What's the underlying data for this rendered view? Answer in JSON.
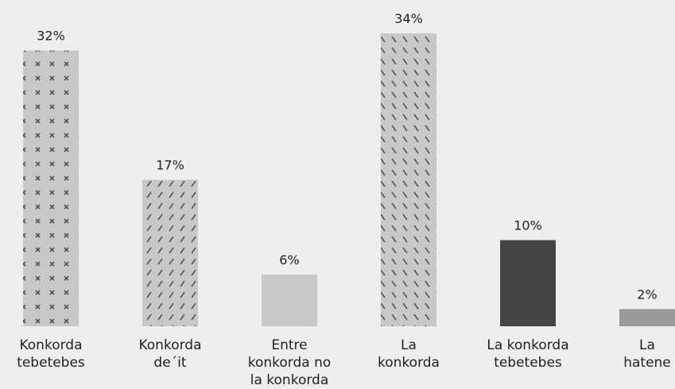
{
  "chart_data": {
    "type": "bar",
    "categories": [
      "Konkorda\ntebetebes",
      "Konkorda\nde´it",
      "Entre\nkonkorda no\nla konkorda",
      "La\nkonkorda",
      "La konkorda\ntebetebes",
      "La\nhatene"
    ],
    "values": [
      32,
      17,
      6,
      34,
      10,
      2
    ],
    "value_labels": [
      "32%",
      "17%",
      "6%",
      "34%",
      "10%",
      "2%"
    ],
    "colors": [
      "#c8c8c8",
      "#c8c8c8",
      "#c8c8c8",
      "#c8c8c8",
      "#454545",
      "#9a9a9a"
    ],
    "patterns": [
      "cross",
      "slash",
      "none",
      "backslash",
      "none",
      "none"
    ]
  }
}
